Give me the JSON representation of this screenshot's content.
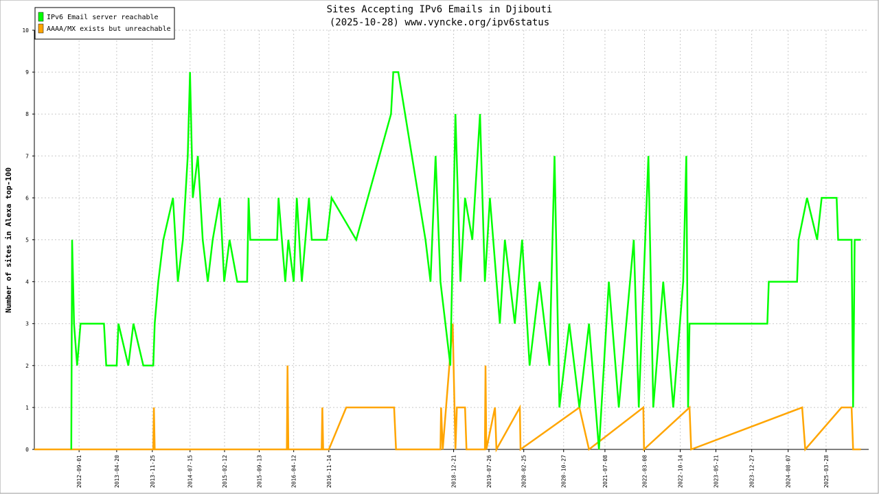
{
  "chart_data": {
    "type": "line",
    "title": "Sites Accepting IPv6 Emails in Djibouti",
    "subtitle": "(2025-10-28) www.vyncke.org/ipv6status",
    "y_label": "Number of sites in Alexa top-100",
    "xlim": [
      "2011-12-01",
      "2025-12-15"
    ],
    "xticks": [
      "2012-09-01",
      "2013-04-20",
      "2013-11-25",
      "2014-07-15",
      "2015-02-12",
      "2015-09-13",
      "2016-04-12",
      "2016-11-14",
      "2018-12-21",
      "2019-07-26",
      "2020-02-25",
      "2020-10-27",
      "2021-07-08",
      "2022-03-08",
      "2022-10-14",
      "2023-05-21",
      "2023-12-27",
      "2024-08-07",
      "2025-03-28"
    ],
    "ylim": [
      0,
      10
    ],
    "yticks": [
      0,
      1,
      2,
      3,
      4,
      5,
      6,
      7,
      8,
      9,
      10
    ],
    "grid": true,
    "legend": "top-left",
    "series": [
      {
        "name": "IPv6 Email server reachable",
        "color": "#00ff00",
        "x": [
          "2012-07-15",
          "2012-07-20",
          "2012-08-01",
          "2012-08-20",
          "2012-09-10",
          "2013-02-01",
          "2013-02-15",
          "2013-04-20",
          "2013-05-01",
          "2013-07-01",
          "2013-08-01",
          "2013-10-01",
          "2013-12-01",
          "2013-12-10",
          "2014-01-01",
          "2014-02-01",
          "2014-04-01",
          "2014-05-01",
          "2014-06-01",
          "2014-07-01",
          "2014-07-15",
          "2014-08-01",
          "2014-09-01",
          "2014-10-01",
          "2014-11-01",
          "2014-12-01",
          "2015-01-15",
          "2015-02-10",
          "2015-03-15",
          "2015-05-01",
          "2015-07-01",
          "2015-07-10",
          "2015-07-20",
          "2016-01-01",
          "2016-01-10",
          "2016-02-20",
          "2016-03-10",
          "2016-04-12",
          "2016-05-01",
          "2016-06-01",
          "2016-07-15",
          "2016-08-01",
          "2016-11-01",
          "2016-12-01",
          "2017-05-01",
          "2017-12-01",
          "2017-12-15",
          "2018-01-15",
          "2018-07-01",
          "2018-08-01",
          "2018-09-01",
          "2018-10-01",
          "2018-12-01",
          "2019-01-01",
          "2019-02-01",
          "2019-03-01",
          "2019-04-15",
          "2019-06-01",
          "2019-07-01",
          "2019-08-01",
          "2019-10-01",
          "2019-11-01",
          "2020-01-01",
          "2020-02-15",
          "2020-04-01",
          "2020-06-01",
          "2020-08-01",
          "2020-09-01",
          "2020-10-01",
          "2020-12-01",
          "2021-02-01",
          "2021-04-01",
          "2021-06-01",
          "2021-08-01",
          "2021-10-01",
          "2022-01-01",
          "2022-02-01",
          "2022-04-01",
          "2022-05-01",
          "2022-07-01",
          "2022-09-01",
          "2022-11-01",
          "2022-11-20",
          "2022-12-01",
          "2022-12-10",
          "2024-04-01",
          "2024-04-10",
          "2024-10-01",
          "2024-10-10",
          "2024-12-01",
          "2025-02-01",
          "2025-03-01",
          "2025-06-01",
          "2025-06-10",
          "2025-09-01",
          "2025-09-10",
          "2025-09-20",
          "2025-10-28"
        ],
        "values": [
          0,
          5,
          3,
          2,
          3,
          3,
          2,
          2,
          3,
          2,
          3,
          2,
          2,
          3,
          4,
          5,
          6,
          4,
          5,
          7,
          9,
          6,
          7,
          5,
          4,
          5,
          6,
          4,
          5,
          4,
          4,
          6,
          5,
          5,
          6,
          4,
          5,
          4,
          6,
          4,
          6,
          5,
          5,
          6,
          5,
          8,
          9,
          9,
          5,
          4,
          7,
          4,
          2,
          8,
          4,
          6,
          5,
          8,
          4,
          6,
          3,
          5,
          3,
          5,
          2,
          4,
          2,
          7,
          1,
          3,
          1,
          3,
          0,
          4,
          1,
          5,
          1,
          7,
          1,
          4,
          1,
          4,
          7,
          1,
          3,
          3,
          4,
          4,
          5,
          6,
          5,
          6,
          6,
          5,
          5,
          1,
          5,
          5
        ]
      },
      {
        "name": "AAAA/MX exists but unreachable",
        "color": "#ffa500",
        "x": [
          "2011-12-01",
          "2013-12-01",
          "2013-12-05",
          "2013-12-10",
          "2016-03-01",
          "2016-03-05",
          "2016-03-10",
          "2016-10-01",
          "2016-10-05",
          "2016-10-10",
          "2016-11-14",
          "2017-03-01",
          "2017-12-20",
          "2018-01-01",
          "2018-10-01",
          "2018-10-05",
          "2018-10-15",
          "2018-12-15",
          "2019-01-01",
          "2019-01-10",
          "2019-03-01",
          "2019-03-10",
          "2019-07-01",
          "2019-07-05",
          "2019-07-10",
          "2019-09-01",
          "2019-09-10",
          "2020-02-01",
          "2020-02-05",
          "2021-02-01",
          "2021-04-01",
          "2022-03-01",
          "2022-03-05",
          "2022-12-10",
          "2022-12-20",
          "2024-11-01",
          "2024-11-20",
          "2025-07-01",
          "2025-09-01",
          "2025-09-10",
          "2025-10-28"
        ],
        "values": [
          0,
          0,
          1,
          0,
          0,
          2,
          0,
          0,
          1,
          0,
          0,
          1,
          1,
          0,
          0,
          1,
          0,
          3,
          0,
          1,
          1,
          0,
          0,
          2,
          0,
          1,
          0,
          1,
          0,
          1,
          0,
          1,
          0,
          1,
          0,
          1,
          0,
          1,
          1,
          0,
          0
        ]
      }
    ]
  }
}
